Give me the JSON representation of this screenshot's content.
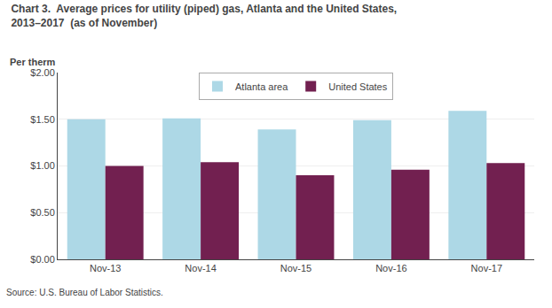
{
  "chart_data": {
    "type": "bar",
    "title": "Chart 3.  Average prices for utility (piped) gas, Atlanta and the United States,\n2013–2017  (as of November)",
    "ylabel": "Per therm",
    "source": "Source: U.S. Bureau of Labor Statistics.",
    "categories": [
      "Nov-13",
      "Nov-14",
      "Nov-15",
      "Nov-16",
      "Nov-17"
    ],
    "series": [
      {
        "name": "Atlanta area",
        "color": "#add8e6",
        "values": [
          1.5,
          1.51,
          1.39,
          1.49,
          1.59
        ]
      },
      {
        "name": "United States",
        "color": "#722050",
        "values": [
          1.0,
          1.04,
          0.9,
          0.96,
          1.03
        ]
      }
    ],
    "ylim": [
      0,
      2.0
    ],
    "yticks": [
      {
        "value": 0,
        "label": "$0.00"
      },
      {
        "value": 0.5,
        "label": "$0.50"
      },
      {
        "value": 1.0,
        "label": "$1.00"
      },
      {
        "value": 1.5,
        "label": "$1.50"
      },
      {
        "value": 2.0,
        "label": "$2.00"
      }
    ],
    "grid": true,
    "legend": "top"
  }
}
